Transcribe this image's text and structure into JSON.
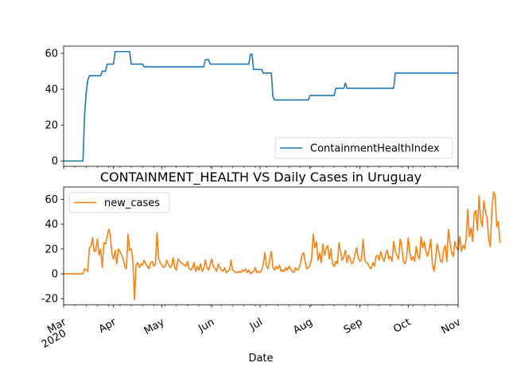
{
  "chart_data": [
    {
      "type": "line",
      "title": "",
      "xlabel": "",
      "ylabel": "",
      "ylim": [
        -3,
        64
      ],
      "yticks": [
        0,
        20,
        40,
        60
      ],
      "legend": "lower-right",
      "series": [
        {
          "name": "ContainmentHealthIndex",
          "color": "#1f77b4",
          "points": [
            [
              "2020-03-01",
              0
            ],
            [
              "2020-03-13",
              0
            ],
            [
              "2020-03-14",
              25
            ],
            [
              "2020-03-15",
              38
            ],
            [
              "2020-03-16",
              45
            ],
            [
              "2020-03-17",
              47.5
            ],
            [
              "2020-03-24",
              47.5
            ],
            [
              "2020-03-25",
              50
            ],
            [
              "2020-03-27",
              50
            ],
            [
              "2020-03-28",
              54
            ],
            [
              "2020-04-01",
              54
            ],
            [
              "2020-04-02",
              61
            ],
            [
              "2020-04-11",
              61
            ],
            [
              "2020-04-12",
              54
            ],
            [
              "2020-04-19",
              54
            ],
            [
              "2020-04-20",
              52.5
            ],
            [
              "2020-05-27",
              52.5
            ],
            [
              "2020-05-28",
              56.5
            ],
            [
              "2020-05-30",
              56.5
            ],
            [
              "2020-05-31",
              54
            ],
            [
              "2020-06-24",
              54
            ],
            [
              "2020-06-25",
              59.5
            ],
            [
              "2020-06-26",
              59.5
            ],
            [
              "2020-06-27",
              51
            ],
            [
              "2020-07-02",
              51
            ],
            [
              "2020-07-03",
              49
            ],
            [
              "2020-07-08",
              49
            ],
            [
              "2020-07-09",
              36
            ],
            [
              "2020-07-10",
              34
            ],
            [
              "2020-07-31",
              34
            ],
            [
              "2020-08-01",
              36.5
            ],
            [
              "2020-08-16",
              36.5
            ],
            [
              "2020-08-17",
              40.5
            ],
            [
              "2020-08-22",
              40.5
            ],
            [
              "2020-08-23",
              43.5
            ],
            [
              "2020-08-24",
              40.5
            ],
            [
              "2020-09-22",
              40.5
            ],
            [
              "2020-09-23",
              49
            ],
            [
              "2020-11-01",
              49
            ]
          ]
        }
      ]
    },
    {
      "type": "line",
      "title": "CONTAINMENT_HEALTH VS Daily Cases in Uruguay",
      "xlabel": "Date",
      "ylabel": "",
      "ylim": [
        -25,
        70
      ],
      "yticks": [
        -20,
        0,
        20,
        40,
        60
      ],
      "legend": "upper-left",
      "series": [
        {
          "name": "new_cases",
          "color": "#ff7f0e",
          "start": "2020-03-01",
          "values": [
            0,
            0,
            0,
            0,
            0,
            0,
            0,
            0,
            0,
            0,
            0,
            0,
            0,
            4,
            3,
            2,
            21,
            22,
            29,
            18,
            19,
            28,
            15,
            20,
            5,
            25,
            24,
            30,
            36,
            31,
            16,
            12,
            19,
            8,
            20,
            18,
            15,
            12,
            6,
            4,
            32,
            19,
            20,
            11,
            -21,
            7,
            9,
            5,
            8,
            7,
            11,
            8,
            6,
            4,
            9,
            10,
            6,
            8,
            33,
            12,
            9,
            7,
            5,
            6,
            11,
            8,
            5,
            6,
            13,
            5,
            3,
            12,
            10,
            9,
            8,
            7,
            6,
            10,
            4,
            3,
            5,
            9,
            2,
            6,
            3,
            8,
            2,
            4,
            11,
            5,
            3,
            7,
            12,
            6,
            4,
            2,
            8,
            5,
            3,
            2,
            5,
            1,
            2,
            3,
            11,
            3,
            2,
            1,
            1,
            2,
            1,
            3,
            2,
            4,
            1,
            3,
            0,
            1,
            2,
            5,
            1,
            2,
            1,
            3,
            8,
            17,
            6,
            4,
            12,
            18,
            5,
            3,
            6,
            4,
            7,
            2,
            3,
            2,
            5,
            3,
            6,
            4,
            2,
            1,
            5,
            3,
            4,
            8,
            15,
            17,
            10,
            4,
            5,
            7,
            12,
            32,
            21,
            26,
            11,
            17,
            9,
            24,
            15,
            20,
            23,
            12,
            20,
            8,
            6,
            10,
            8,
            25,
            18,
            11,
            14,
            19,
            9,
            15,
            12,
            8,
            10,
            16,
            21,
            13,
            10,
            12,
            28,
            11,
            9,
            8,
            5,
            4,
            9,
            6,
            14,
            15,
            11,
            18,
            13,
            10,
            16,
            19,
            12,
            14,
            10,
            26,
            18,
            15,
            12,
            28,
            22,
            10,
            8,
            13,
            29,
            17,
            11,
            14,
            10,
            22,
            15,
            12,
            30,
            21,
            26,
            18,
            14,
            20,
            28,
            8,
            2,
            12,
            24,
            18,
            11,
            9,
            19,
            23,
            10,
            36,
            25,
            17,
            14,
            26,
            21,
            19,
            30,
            18,
            23,
            20,
            28,
            52,
            30,
            37,
            26,
            49,
            51,
            35,
            63,
            44,
            38,
            59,
            50,
            45,
            28,
            22,
            52,
            66,
            63,
            38,
            42,
            25
          ]
        }
      ]
    }
  ],
  "shared_x": {
    "range": [
      "2020-03-01",
      "2020-11-01"
    ],
    "month_ticks": [
      {
        "date": "2020-03-01",
        "label": "Mar",
        "sub": "2020"
      },
      {
        "date": "2020-04-01",
        "label": "Apr"
      },
      {
        "date": "2020-05-01",
        "label": "May"
      },
      {
        "date": "2020-06-01",
        "label": "Jun"
      },
      {
        "date": "2020-07-01",
        "label": "Jul"
      },
      {
        "date": "2020-08-01",
        "label": "Aug"
      },
      {
        "date": "2020-09-01",
        "label": "Sep"
      },
      {
        "date": "2020-10-01",
        "label": "Oct"
      },
      {
        "date": "2020-11-01",
        "label": "Nov"
      }
    ]
  }
}
